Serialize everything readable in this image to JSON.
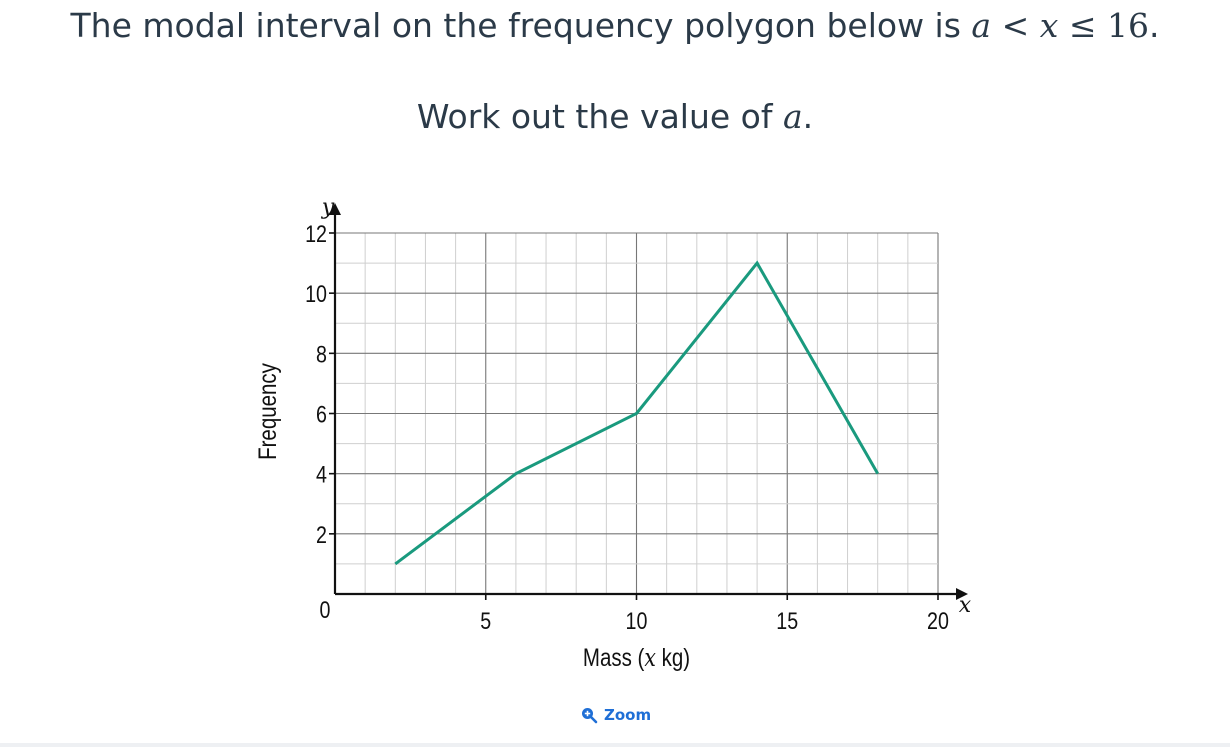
{
  "question": {
    "prefix": "The modal interval on the frequency polygon below is ",
    "math_a": "a",
    "lt": " < ",
    "math_x": "x",
    "le": " ≤ ",
    "num": "16",
    "period": "."
  },
  "instruction": {
    "prefix": "Work out the value of ",
    "math": "a",
    "suffix": "."
  },
  "chart_data": {
    "type": "line",
    "x": [
      2,
      6,
      10,
      14,
      18
    ],
    "y": [
      1,
      4,
      6,
      11,
      4
    ],
    "xlim": [
      0,
      20
    ],
    "ylim": [
      0,
      12
    ],
    "x_ticks": [
      0,
      5,
      10,
      15,
      20
    ],
    "y_ticks": [
      2,
      4,
      6,
      8,
      10,
      12
    ],
    "x_tick_labels": [
      "5",
      "10",
      "15",
      "20"
    ],
    "origin_label": "0",
    "y_tick_labels": [
      "2",
      "4",
      "6",
      "8",
      "10",
      "12"
    ],
    "xlabel": "Mass (x kg)",
    "ylabel": "Frequency",
    "x_axis_letter": "x",
    "y_axis_letter": "y",
    "minor_grid": 1,
    "grid": true,
    "line_color": "#1a9a7e"
  },
  "zoom": {
    "label": "Zoom",
    "icon": "zoom-in-icon"
  }
}
